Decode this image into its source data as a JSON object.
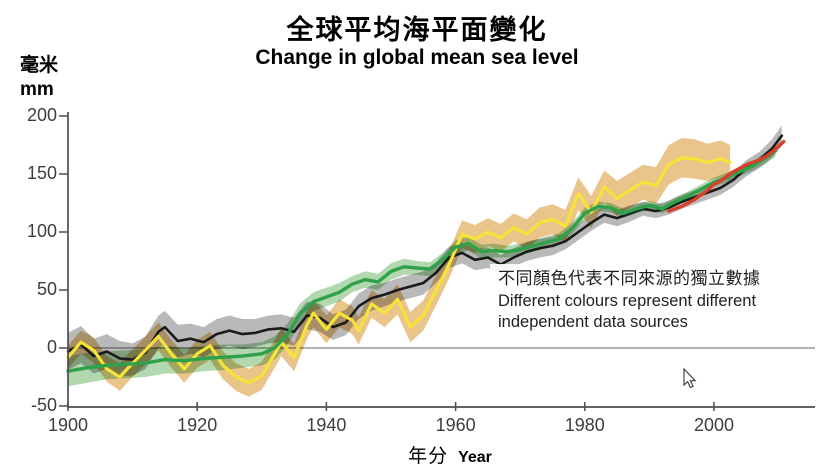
{
  "page": {
    "background": "#ffffff"
  },
  "chart_data": {
    "type": "line",
    "title_zh": "全球平均海平面變化",
    "title_en": "Change in global mean sea level",
    "ylabel_zh": "毫米",
    "ylabel_en": "mm",
    "xlabel_zh": "年分",
    "xlabel_en": "Year",
    "xlim": [
      1900,
      2015
    ],
    "ylim": [
      -50,
      200
    ],
    "xticks": [
      1900,
      1920,
      1940,
      1960,
      1980,
      2000
    ],
    "yticks": [
      200,
      150,
      100,
      50,
      0,
      -50
    ],
    "grid": false,
    "zero_line_color": "#999999",
    "axis_color": "#4d4d4d",
    "tick_label_color": "#3e3e3e",
    "legend_position": "none",
    "annotation": {
      "zh": "不同顏色代表不同來源的獨立數據",
      "en_line1": "Different colours represent different",
      "en_line2": "independent data sources"
    },
    "series": [
      {
        "name": "black-series",
        "color": "#1b1b1b",
        "band_color": "#adadad",
        "line_width": 2.6,
        "x": [
          1900,
          1902,
          1904,
          1906,
          1908,
          1910,
          1912,
          1914,
          1915,
          1917,
          1919,
          1921,
          1923,
          1925,
          1927,
          1929,
          1931,
          1933,
          1935,
          1937,
          1939,
          1941,
          1943,
          1945,
          1947,
          1949,
          1951,
          1953,
          1955,
          1957,
          1959,
          1961,
          1963,
          1965,
          1967,
          1969,
          1971,
          1973,
          1975,
          1977,
          1979,
          1981,
          1983,
          1985,
          1987,
          1989,
          1991,
          1993,
          1995,
          1997,
          1999,
          2001,
          2003,
          2005,
          2007,
          2009,
          2010.5
        ],
        "y": [
          -3,
          3,
          -7,
          -3,
          -9,
          -10,
          -4,
          14,
          18,
          6,
          8,
          5,
          12,
          15,
          12,
          13,
          16,
          17,
          14,
          28,
          26,
          18,
          22,
          36,
          43,
          46,
          50,
          53,
          56,
          65,
          78,
          82,
          76,
          78,
          72,
          78,
          83,
          86,
          88,
          92,
          100,
          108,
          115,
          112,
          116,
          120,
          118,
          121,
          126,
          130,
          134,
          138,
          145,
          155,
          162,
          172,
          183
        ],
        "band": [
          16,
          16,
          15,
          15,
          15,
          14,
          14,
          14,
          14,
          14,
          13,
          13,
          13,
          13,
          13,
          12,
          12,
          12,
          12,
          12,
          12,
          11,
          11,
          11,
          11,
          10,
          10,
          10,
          10,
          9,
          9,
          9,
          9,
          9,
          8,
          8,
          8,
          8,
          8,
          7,
          7,
          7,
          7,
          7,
          7,
          6,
          6,
          6,
          6,
          6,
          6,
          6,
          6,
          7,
          7,
          8,
          9
        ]
      },
      {
        "name": "yellow-series",
        "color": "#f6e337",
        "band_color": "#e5bb78",
        "line_width": 3.2,
        "x": [
          1900,
          1902,
          1904,
          1906,
          1908,
          1910,
          1912,
          1914,
          1916,
          1918,
          1920,
          1922,
          1924,
          1926,
          1928,
          1930,
          1932,
          1933,
          1935,
          1937,
          1938,
          1940,
          1942,
          1944,
          1945,
          1947,
          1949,
          1951,
          1953,
          1955,
          1957,
          1959,
          1961,
          1963,
          1965,
          1967,
          1969,
          1971,
          1973,
          1975,
          1977,
          1979,
          1981,
          1983,
          1985,
          1987,
          1989,
          1991,
          1993,
          1995,
          1997,
          1999,
          2001,
          2002.5
        ],
        "y": [
          -8,
          5,
          -2,
          -18,
          -25,
          -13,
          -2,
          10,
          -5,
          -18,
          -5,
          2,
          -15,
          -25,
          -30,
          -24,
          -5,
          5,
          -8,
          20,
          30,
          16,
          30,
          24,
          15,
          38,
          30,
          42,
          18,
          28,
          50,
          72,
          98,
          94,
          100,
          95,
          104,
          98,
          108,
          111,
          105,
          133,
          117,
          139,
          129,
          136,
          143,
          140,
          158,
          164,
          163,
          160,
          163,
          160
        ],
        "band": [
          10,
          10,
          11,
          11,
          12,
          12,
          12,
          12,
          12,
          12,
          12,
          12,
          12,
          12,
          12,
          12,
          12,
          12,
          12,
          12,
          12,
          12,
          12,
          12,
          12,
          12,
          12,
          13,
          13,
          13,
          13,
          12,
          12,
          12,
          12,
          12,
          12,
          13,
          13,
          13,
          14,
          14,
          14,
          14,
          15,
          15,
          15,
          16,
          17,
          17,
          17,
          16,
          16,
          15
        ]
      },
      {
        "name": "green-series",
        "color": "#2fa14b",
        "band_color": "#a4d1a2",
        "line_width": 3.4,
        "x": [
          1900,
          1903,
          1906,
          1909,
          1912,
          1915,
          1918,
          1921,
          1924,
          1927,
          1930,
          1932,
          1934,
          1936,
          1938,
          1940,
          1942,
          1944,
          1946,
          1948,
          1950,
          1952,
          1954,
          1956,
          1958,
          1960,
          1962,
          1964,
          1966,
          1968,
          1970,
          1972,
          1974,
          1976,
          1978,
          1980,
          1982,
          1984,
          1986,
          1988,
          1990,
          1992,
          1994,
          1996,
          1998,
          2000,
          2002,
          2004,
          2006,
          2008,
          2009.5
        ],
        "y": [
          -20,
          -17,
          -15,
          -14,
          -13,
          -10,
          -11,
          -9,
          -8,
          -7,
          -5,
          0,
          12,
          30,
          40,
          44,
          48,
          55,
          59,
          57,
          66,
          70,
          69,
          68,
          76,
          87,
          90,
          83,
          84,
          83,
          85,
          88,
          91,
          94,
          103,
          116,
          122,
          121,
          116,
          120,
          123,
          120,
          126,
          131,
          137,
          143,
          147,
          152,
          157,
          164,
          170
        ],
        "band": [
          13,
          13,
          12,
          12,
          12,
          12,
          11,
          11,
          11,
          10,
          10,
          10,
          9,
          9,
          8,
          8,
          8,
          7,
          7,
          7,
          7,
          7,
          6,
          6,
          6,
          6,
          6,
          6,
          6,
          5,
          5,
          5,
          5,
          5,
          5,
          5,
          4,
          4,
          4,
          4,
          4,
          4,
          4,
          4,
          4,
          4,
          4,
          4,
          4,
          5,
          5
        ]
      },
      {
        "name": "red-series",
        "color": "#d8402c",
        "band_color": null,
        "line_width": 3.4,
        "x": [
          1993,
          1994,
          1995,
          1996,
          1997,
          1998,
          1999,
          2000,
          2001,
          2002,
          2003,
          2004,
          2005,
          2006,
          2007,
          2008,
          2009,
          2010,
          2010.8
        ],
        "y": [
          118,
          120,
          122,
          125,
          128,
          132,
          136,
          141,
          144,
          148,
          152,
          155,
          158,
          160,
          162,
          165,
          169,
          174,
          178
        ]
      }
    ]
  },
  "cursor": {
    "present": true
  }
}
